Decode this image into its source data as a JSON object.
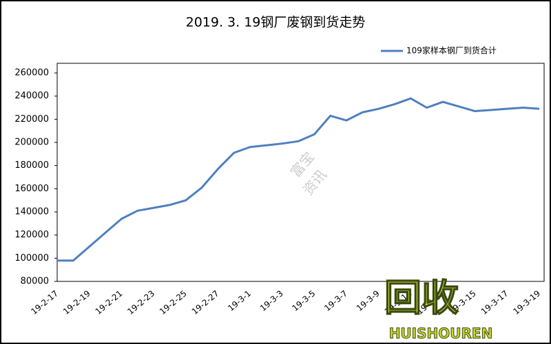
{
  "chart_data": {
    "type": "line",
    "title": "2019. 3. 19钢厂废钢到货走势",
    "categories": [
      "19-2-17",
      null,
      "19-2-19",
      null,
      "19-2-21",
      null,
      "19-2-23",
      null,
      "19-2-25",
      null,
      "19-2-27",
      null,
      "19-3-1",
      null,
      "19-3-3",
      null,
      "19-3-5",
      null,
      "19-3-7",
      null,
      "19-3-9",
      null,
      "19-3-11",
      null,
      "19-3-13",
      null,
      "19-3-15",
      null,
      "19-3-17",
      null,
      "19-3-19"
    ],
    "series": [
      {
        "name": "109家样本钢厂到货合计",
        "color": "#4f7fbf",
        "values": [
          98000,
          98000,
          110000,
          122000,
          134000,
          141000,
          143500,
          146000,
          150000,
          161000,
          177000,
          191000,
          196000,
          197500,
          199000,
          201000,
          207000,
          223000,
          219000,
          226000,
          229000,
          233000,
          238000,
          230000,
          235000,
          231000,
          227000,
          228000,
          229000,
          230000,
          229000
        ]
      }
    ],
    "ylim": [
      80000,
      260000
    ],
    "yticks": [
      80000,
      100000,
      120000,
      140000,
      160000,
      180000,
      200000,
      220000,
      240000,
      260000
    ],
    "grid": false,
    "legend": "top-right",
    "watermark": [
      "富宝",
      "资讯"
    ],
    "logo": [
      "回收",
      "HUISHOUREN"
    ]
  }
}
